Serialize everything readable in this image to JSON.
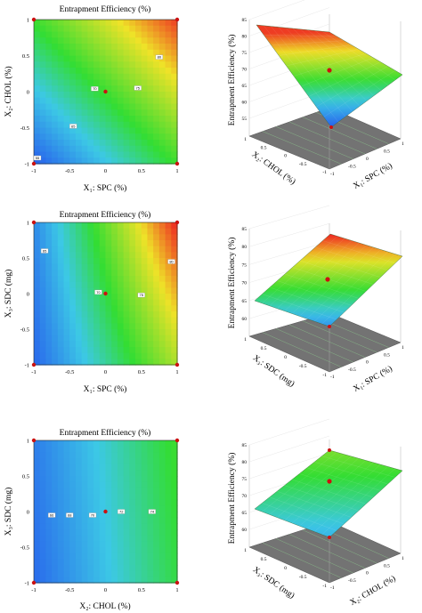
{
  "colors": {
    "low": "#2244ee",
    "mid": "#33dd33",
    "high": "#ee2222",
    "floor": "#737373",
    "point": "#cc1111"
  },
  "chart_data": [
    {
      "type": "contour",
      "title": "Entrapment Efficiency (%)",
      "xlabel": "X₁: SPC (%)",
      "ylabel": "X₂: CHOL (%)",
      "xticks": [
        "-1",
        "-0.5",
        "0",
        "0.5",
        "1"
      ],
      "yticks": [
        "-1",
        "-0.5",
        "0",
        "0.5",
        "1"
      ],
      "xlim": [
        -1,
        1
      ],
      "ylim": [
        -1,
        1
      ],
      "corner_values": {
        "x-1_y-1": 55,
        "x1_y-1": 70,
        "x-1_y1": 70,
        "x1_y1": 85
      },
      "contour_labels": [
        {
          "x": -0.95,
          "y": -0.92,
          "value": "55"
        },
        {
          "x": -0.45,
          "y": -0.48,
          "value": "65"
        },
        {
          "x": -0.15,
          "y": 0.04,
          "value": "70"
        },
        {
          "x": 0.45,
          "y": 0.05,
          "value": "75"
        },
        {
          "x": 0.75,
          "y": 0.48,
          "value": "80"
        }
      ],
      "design_points": [
        [
          -1,
          -1
        ],
        [
          1,
          -1
        ],
        [
          -1,
          1
        ],
        [
          1,
          1
        ],
        [
          0,
          0
        ]
      ]
    },
    {
      "type": "surface",
      "zlabel": "Entrapment Efficiency (%)",
      "xlabel": "X₁: SPC (%)",
      "ylabel": "X₂: CHOL (%)",
      "zticks": [
        "55",
        "60",
        "65",
        "70",
        "75",
        "80",
        "85"
      ],
      "zlim": [
        55,
        85
      ],
      "xticks": [
        "-1",
        "-0.5",
        "0",
        "0.5",
        "1"
      ],
      "yticks": [
        "-1",
        "-0.5",
        "0",
        "0.5",
        "1"
      ],
      "corner_values": {
        "x-1_y-1": 55,
        "x1_y-1": 70,
        "x-1_y1": 70,
        "x1_y1": 85
      },
      "center_point": 70
    },
    {
      "type": "contour",
      "title": "Entrapment Efficiency (%)",
      "xlabel": "X₁: SPC (%)",
      "ylabel": "X₃: SDC (mg)",
      "xticks": [
        "-1",
        "-0.5",
        "0",
        "0.5",
        "1"
      ],
      "yticks": [
        "-1",
        "-0.5",
        "0",
        "0.5",
        "1"
      ],
      "xlim": [
        -1,
        1
      ],
      "ylim": [
        -1,
        1
      ],
      "corner_values": {
        "x-1_y-1": 63,
        "x1_y-1": 78,
        "x-1_y1": 65,
        "x1_y1": 86
      },
      "contour_labels": [
        {
          "x": -0.85,
          "y": 0.6,
          "value": "65"
        },
        {
          "x": -0.1,
          "y": 0.02,
          "value": "70"
        },
        {
          "x": 0.5,
          "y": -0.02,
          "value": "75"
        },
        {
          "x": 0.92,
          "y": 0.45,
          "value": "80"
        }
      ],
      "design_points": [
        [
          -1,
          -1
        ],
        [
          1,
          -1
        ],
        [
          -1,
          1
        ],
        [
          1,
          1
        ],
        [
          0,
          0
        ]
      ]
    },
    {
      "type": "surface",
      "zlabel": "Entrapment Efficiency (%)",
      "xlabel": "X₁: SPC (%)",
      "ylabel": "X₃: SDC (mg)",
      "zticks": [
        "60",
        "65",
        "70",
        "75",
        "80",
        "85"
      ],
      "zlim": [
        60,
        85
      ],
      "xticks": [
        "-1",
        "-0.5",
        "0",
        "0.5",
        "1"
      ],
      "yticks": [
        "-1",
        "-0.5",
        "0",
        "0.5",
        "1"
      ],
      "corner_values": {
        "x-1_y-1": 63,
        "x1_y-1": 78,
        "x-1_y1": 65,
        "x1_y1": 86
      },
      "center_point": 70
    },
    {
      "type": "contour",
      "title": "Entrapment Efficiency (%)",
      "xlabel": "X₂: CHOL (%)",
      "ylabel": "X₃: SDC (mg)",
      "xticks": [
        "-1",
        "-0.5",
        "0",
        "0.5",
        "1"
      ],
      "yticks": [
        "-1",
        "-0.5",
        "0",
        "0.5",
        "1"
      ],
      "xlim": [
        -1,
        1
      ],
      "ylim": [
        -1,
        1
      ],
      "corner_values": {
        "x-1_y-1": 65,
        "x1_y-1": 74,
        "x-1_y1": 66,
        "x1_y1": 75
      },
      "contour_labels": [
        {
          "x": -0.75,
          "y": -0.05,
          "value": "66"
        },
        {
          "x": -0.5,
          "y": -0.05,
          "value": "68"
        },
        {
          "x": -0.18,
          "y": -0.05,
          "value": "70"
        },
        {
          "x": 0.22,
          "y": 0.0,
          "value": "72"
        },
        {
          "x": 0.65,
          "y": 0.0,
          "value": "74"
        }
      ],
      "design_points": [
        [
          -1,
          -1
        ],
        [
          1,
          -1
        ],
        [
          -1,
          1
        ],
        [
          1,
          1
        ],
        [
          0,
          0
        ]
      ]
    },
    {
      "type": "surface",
      "zlabel": "Entrapment Efficiency (%)",
      "xlabel": "X₂: CHOL (%)",
      "ylabel": "X₃: SDC (mg)",
      "zticks": [
        "60",
        "65",
        "70",
        "75",
        "80",
        "85"
      ],
      "zlim": [
        60,
        85
      ],
      "xticks": [
        "-1",
        "-0.5",
        "0",
        "0.5",
        "1"
      ],
      "yticks": [
        "-1",
        "-0.5",
        "0",
        "0.5",
        "1"
      ],
      "corner_values": {
        "x-1_y-1": 65,
        "x1_y-1": 74,
        "x-1_y1": 66,
        "x1_y1": 75
      },
      "center_point": 70
    }
  ]
}
